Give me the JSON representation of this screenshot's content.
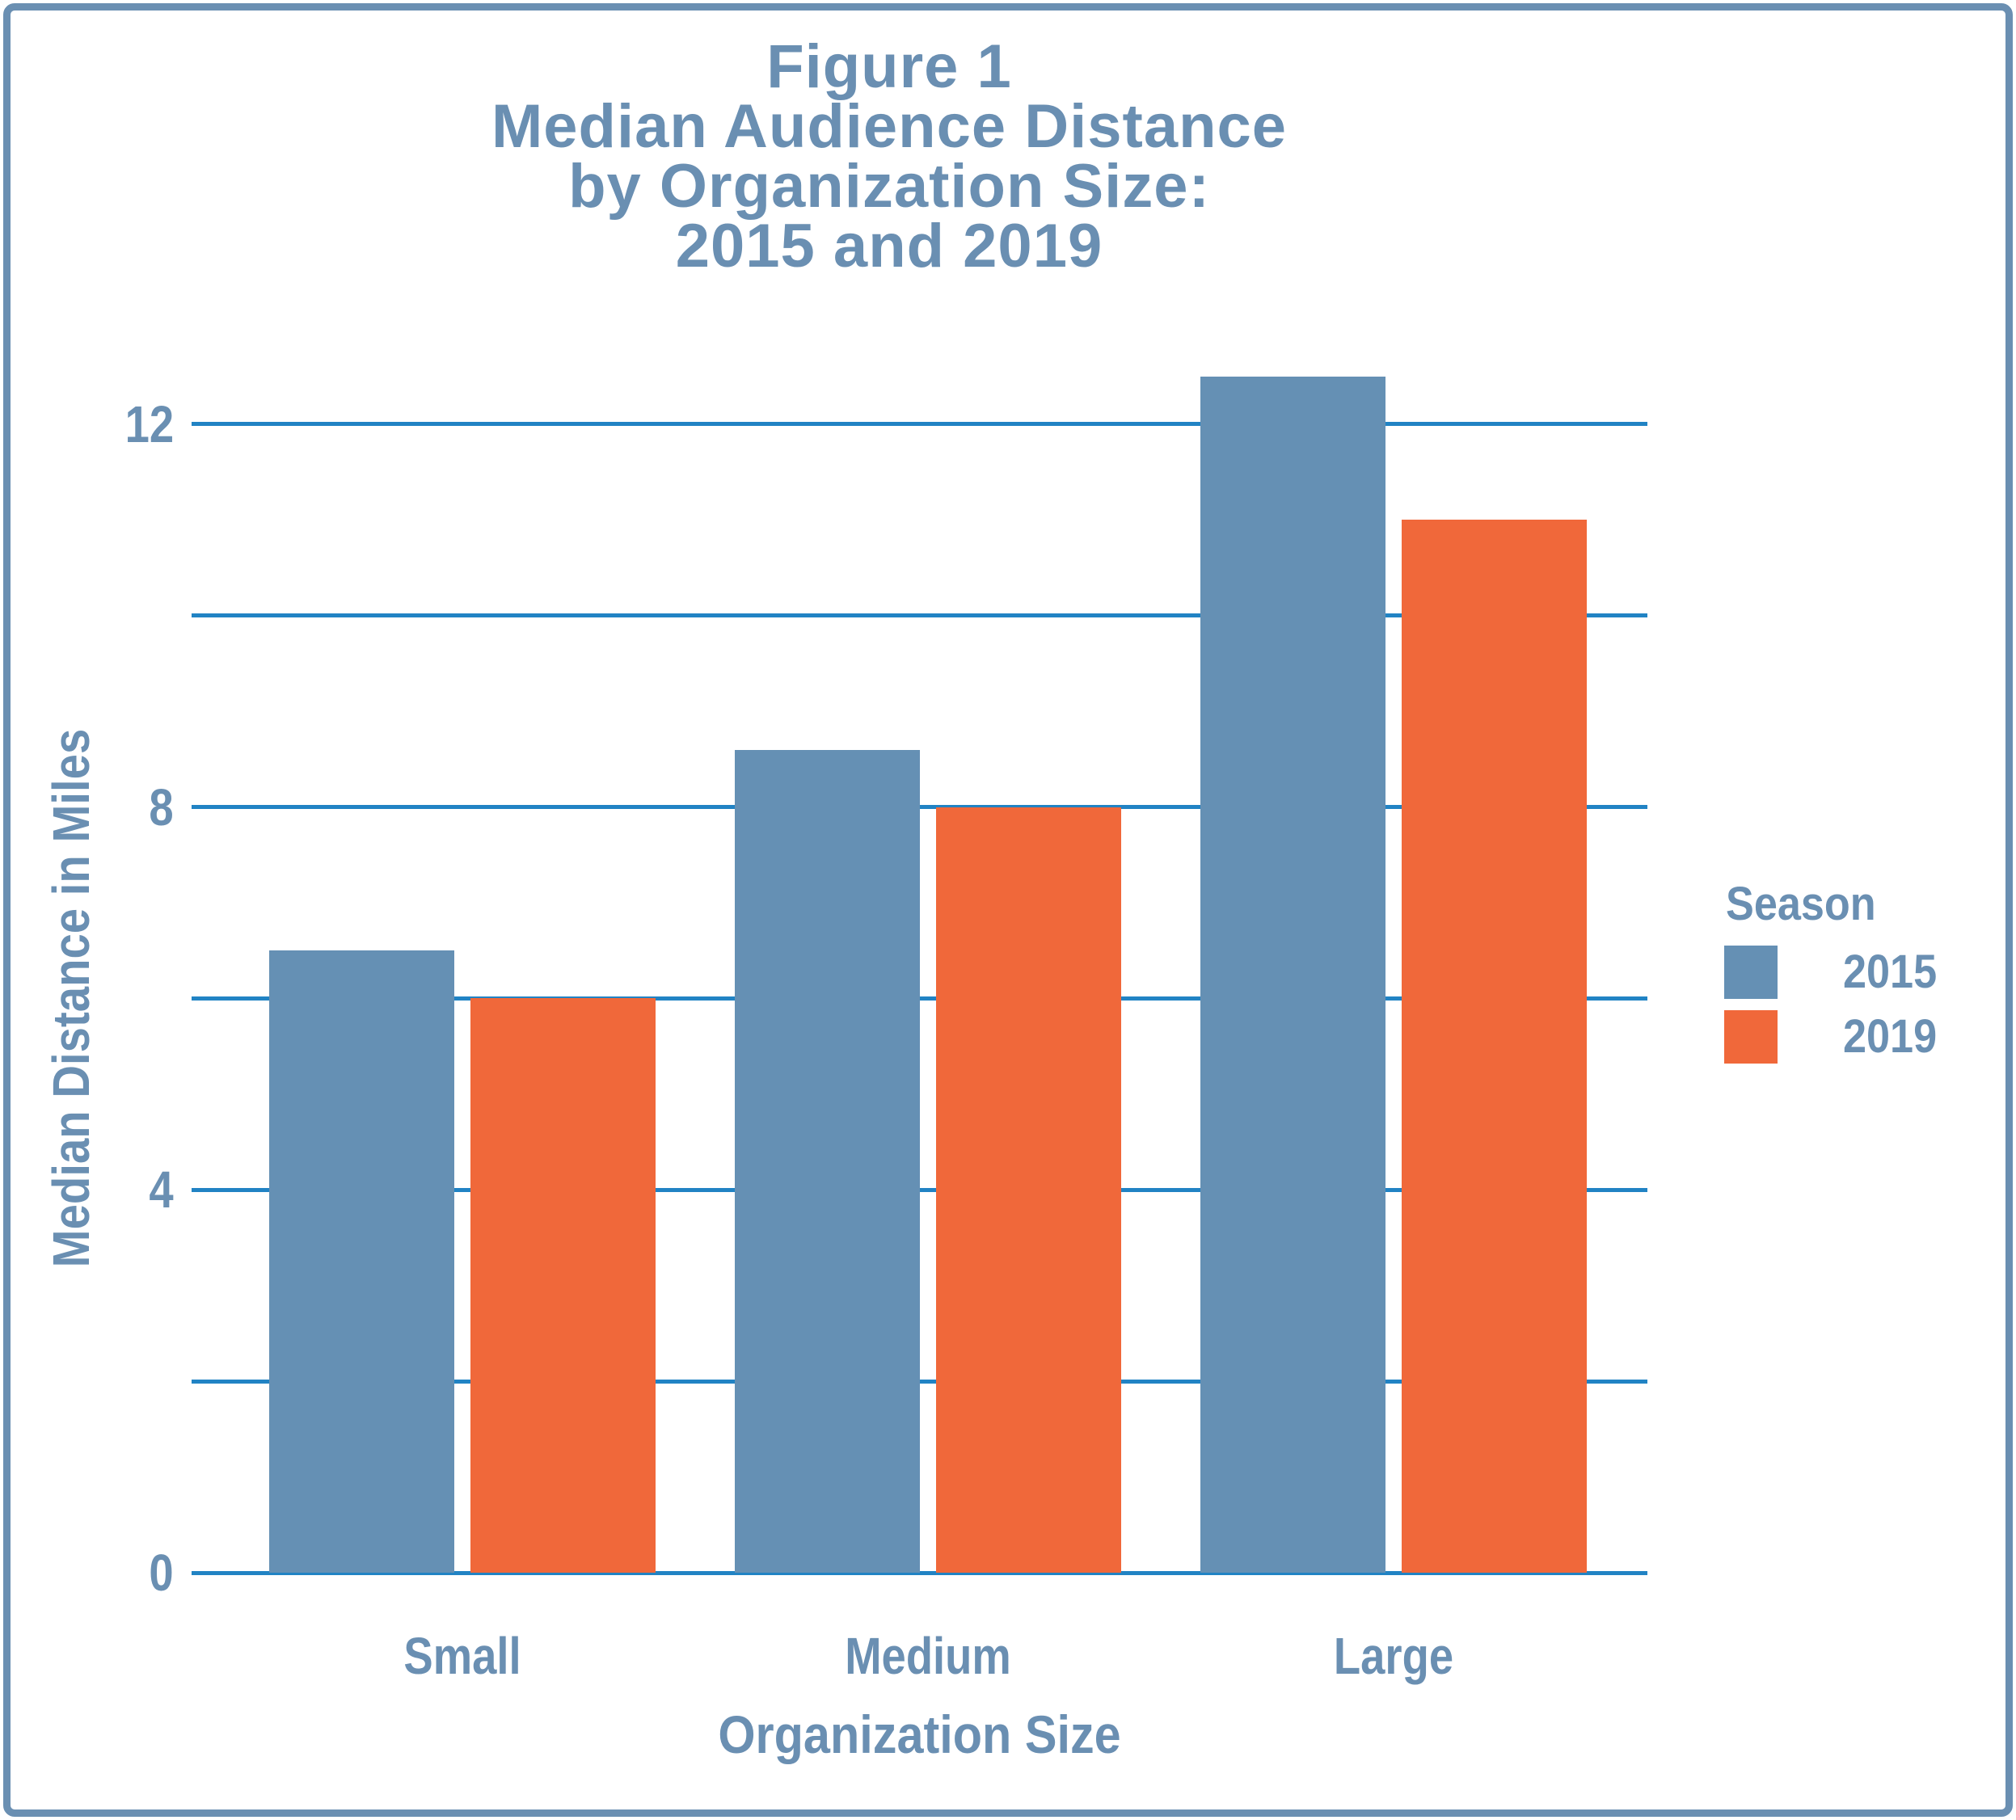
{
  "figure": {
    "title_lines": [
      "Figure 1",
      "Median Audience Distance",
      "by Organization Size:",
      "2015 and 2019"
    ]
  },
  "axes": {
    "y_title": "Median Distance in Miles",
    "x_title": "Organization Size",
    "y_tick_labels": [
      "0",
      "4",
      "8",
      "12"
    ],
    "y_tick_values": [
      0,
      4,
      8,
      12
    ]
  },
  "legend": {
    "title": "Season",
    "items": [
      {
        "label": "2015",
        "color": "#6590B4"
      },
      {
        "label": "2019",
        "color": "#F0683A"
      }
    ]
  },
  "colors": {
    "bar_2015_blue": "#6590B4",
    "bar_2019_orange": "#F0683A",
    "gridline_azure": "#2183C4",
    "text_steel_blue": "#6A8FB2",
    "frame_border": "#6A8FB2",
    "background": "#FFFFFF"
  },
  "chart_data": {
    "type": "bar",
    "title": "Figure 1 — Median Audience Distance by Organization Size: 2015 and 2019",
    "categories": [
      "Small",
      "Medium",
      "Large"
    ],
    "series": [
      {
        "name": "2015",
        "values": [
          6.5,
          8.6,
          12.5
        ],
        "color": "#6590B4"
      },
      {
        "name": "2019",
        "values": [
          6.0,
          8.0,
          11.0
        ],
        "color": "#F0683A"
      }
    ],
    "xlabel": "Organization Size",
    "ylabel": "Median Distance in Miles",
    "ylim": [
      0,
      12
    ],
    "gridline_step": 2,
    "labeled_ticks": [
      0,
      4,
      8,
      12
    ],
    "grid": true,
    "legend_title": "Season",
    "legend_position": "right"
  }
}
